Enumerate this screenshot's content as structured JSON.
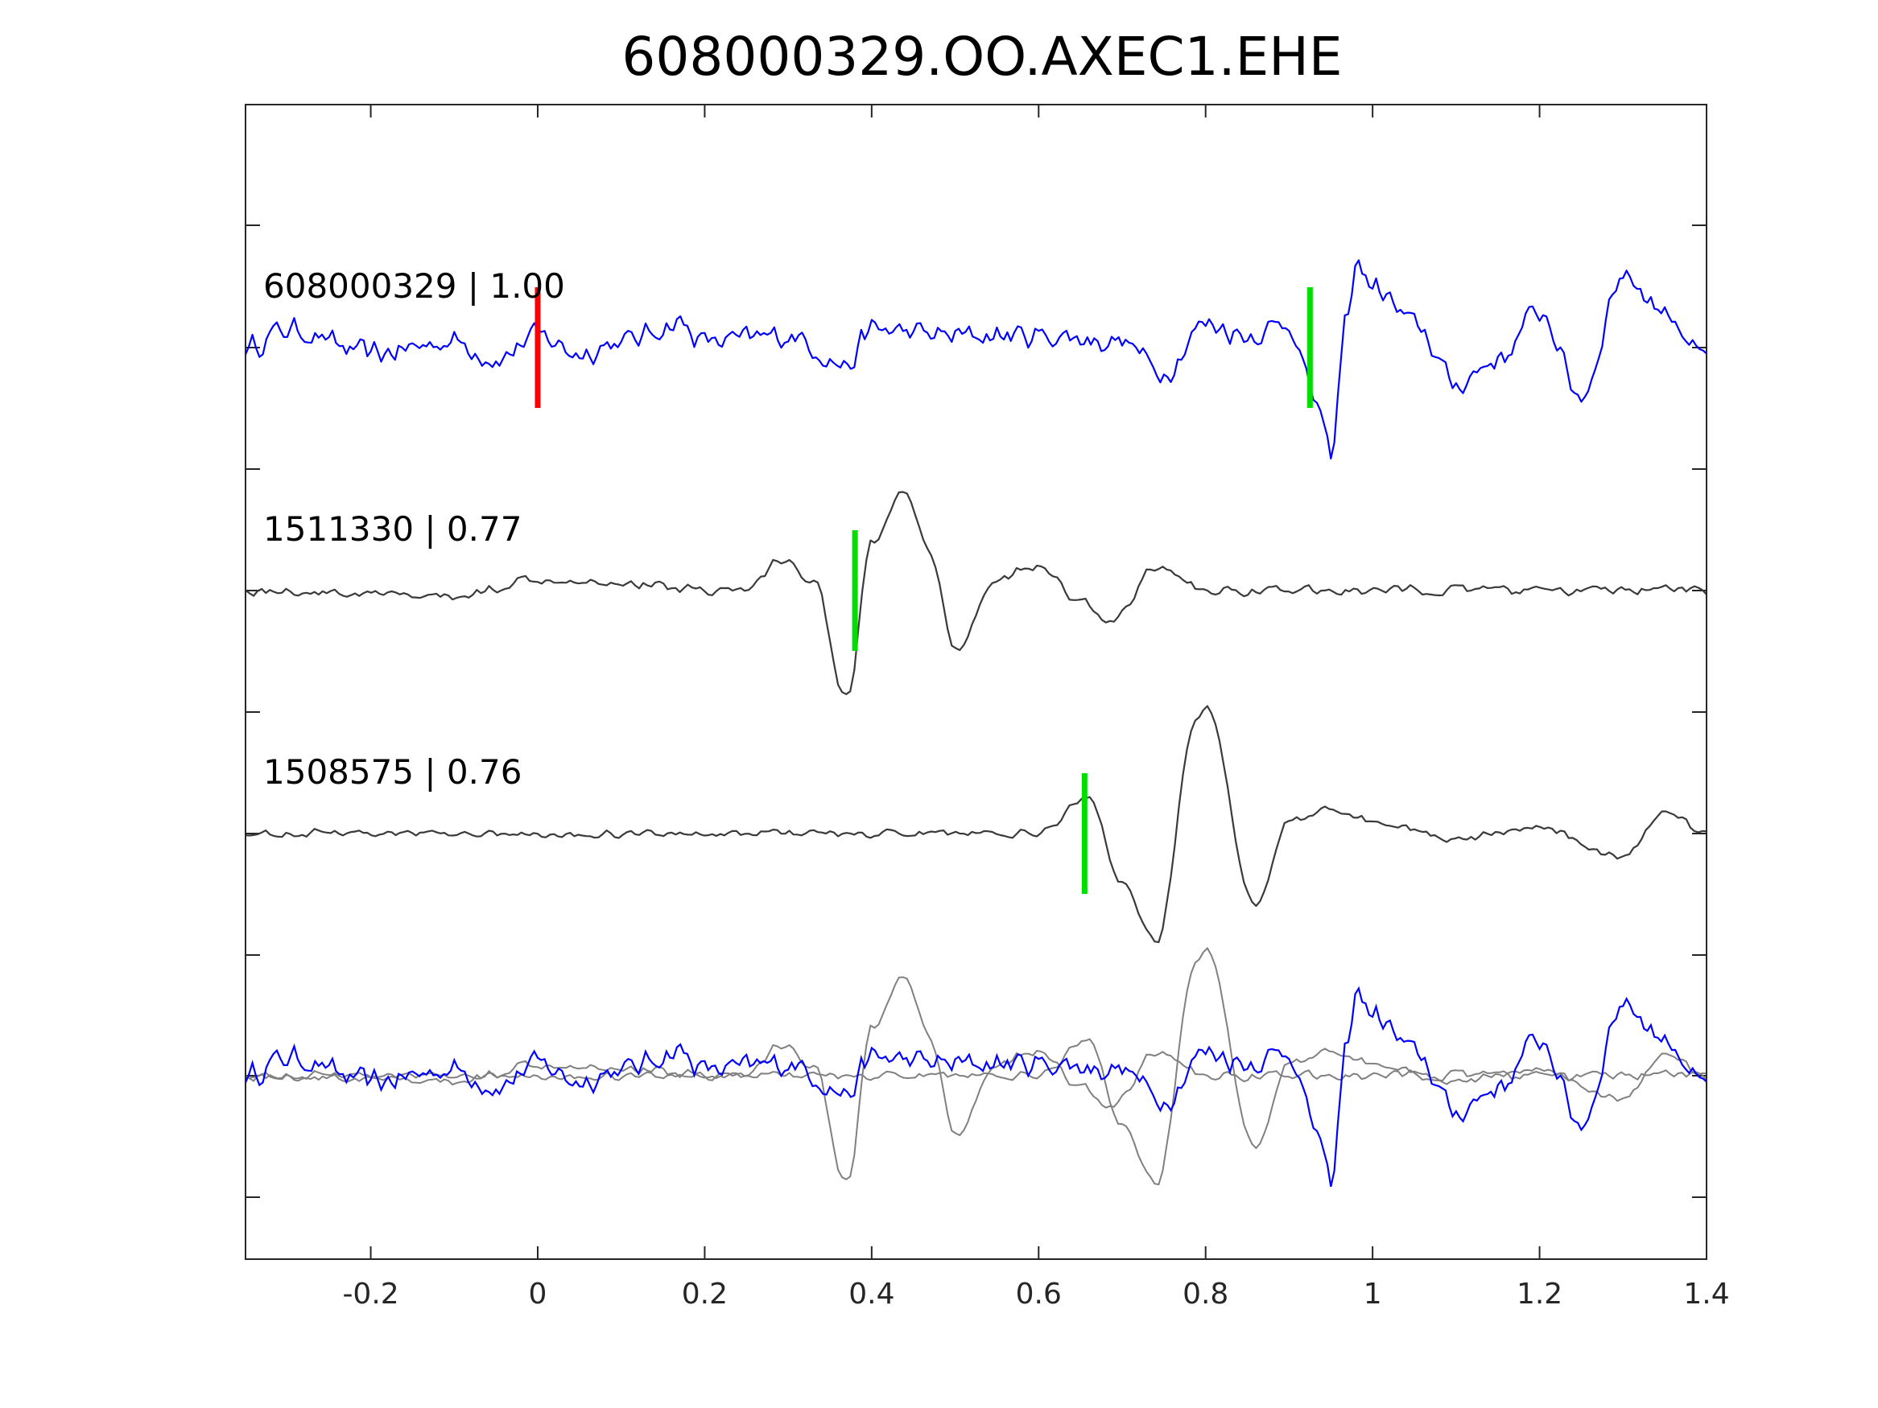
{
  "chart_data": {
    "type": "line",
    "title": "608000329.OO.AXEC1.EHE",
    "xlabel": "",
    "ylabel": "",
    "xlim": [
      -0.35,
      1.4
    ],
    "xticks": [
      -0.2,
      0,
      0.2,
      0.4,
      0.6,
      0.8,
      1,
      1.2,
      1.4
    ],
    "xtick_labels": [
      "-0.2",
      "0",
      "0.2",
      "0.4",
      "0.6",
      "0.8",
      "1",
      "1.2",
      "1.4"
    ],
    "grid": false,
    "panels": [
      {
        "id": "p1",
        "label": "608000329 | 1.00",
        "trace_color": "#0000ff",
        "pick_color": "#ff0000",
        "pick_x": 0.0,
        "pick2_color": "#00dd00",
        "pick2_x": 0.925
      },
      {
        "id": "p2",
        "label": "1511330 | 0.77",
        "trace_color": "#3a3a3a",
        "pick_color": "#00dd00",
        "pick_x": 0.38
      },
      {
        "id": "p3",
        "label": "1508575 | 0.76",
        "trace_color": "#3a3a3a",
        "pick_color": "#00dd00",
        "pick_x": 0.655
      },
      {
        "id": "p4",
        "label": "",
        "trace_color": "#0000ff",
        "overlay_color": "#808080"
      }
    ],
    "series": [
      {
        "panel": "p1",
        "x": [
          -0.35,
          -0.3,
          -0.2,
          -0.1,
          -0.05,
          0.0,
          0.05,
          0.1,
          0.17,
          0.2,
          0.3,
          0.37,
          0.4,
          0.5,
          0.6,
          0.7,
          0.75,
          0.8,
          0.85,
          0.9,
          0.93,
          0.95,
          0.97,
          0.98,
          1.0,
          1.05,
          1.1,
          1.15,
          1.2,
          1.25,
          1.3,
          1.35,
          1.4
        ],
        "y": [
          0.0,
          0.15,
          -0.05,
          0.05,
          -0.1,
          0.1,
          -0.05,
          0.05,
          0.2,
          0.05,
          0.1,
          -0.15,
          0.15,
          0.1,
          0.1,
          0.05,
          -0.2,
          0.2,
          0.1,
          0.2,
          -0.4,
          -0.9,
          0.3,
          0.7,
          0.5,
          0.2,
          -0.3,
          -0.1,
          0.3,
          -0.4,
          0.6,
          0.3,
          -0.1
        ],
        "noise_amplitude": 0.12
      },
      {
        "panel": "p2",
        "x": [
          -0.35,
          -0.1,
          0.0,
          0.25,
          0.29,
          0.33,
          0.37,
          0.4,
          0.44,
          0.47,
          0.5,
          0.55,
          0.6,
          0.65,
          0.69,
          0.74,
          0.8,
          0.9,
          1.0,
          1.2,
          1.4
        ],
        "y": [
          0.0,
          -0.05,
          0.1,
          0.0,
          0.25,
          0.1,
          -0.9,
          0.4,
          0.8,
          0.3,
          -0.5,
          0.1,
          0.2,
          -0.1,
          -0.25,
          0.2,
          0.0,
          0.0,
          0.0,
          0.0,
          0.0
        ],
        "noise_amplitude": 0.05
      },
      {
        "panel": "p3",
        "x": [
          -0.35,
          0.0,
          0.3,
          0.55,
          0.6,
          0.66,
          0.7,
          0.74,
          0.79,
          0.8,
          0.86,
          0.9,
          0.95,
          1.0,
          1.1,
          1.2,
          1.3,
          1.35,
          1.4
        ],
        "y": [
          0.0,
          0.0,
          0.0,
          0.0,
          0.0,
          0.3,
          -0.4,
          -0.9,
          0.95,
          1.05,
          -0.6,
          0.1,
          0.2,
          0.1,
          -0.05,
          0.05,
          -0.2,
          0.2,
          0.0
        ],
        "noise_amplitude": 0.04
      }
    ]
  }
}
